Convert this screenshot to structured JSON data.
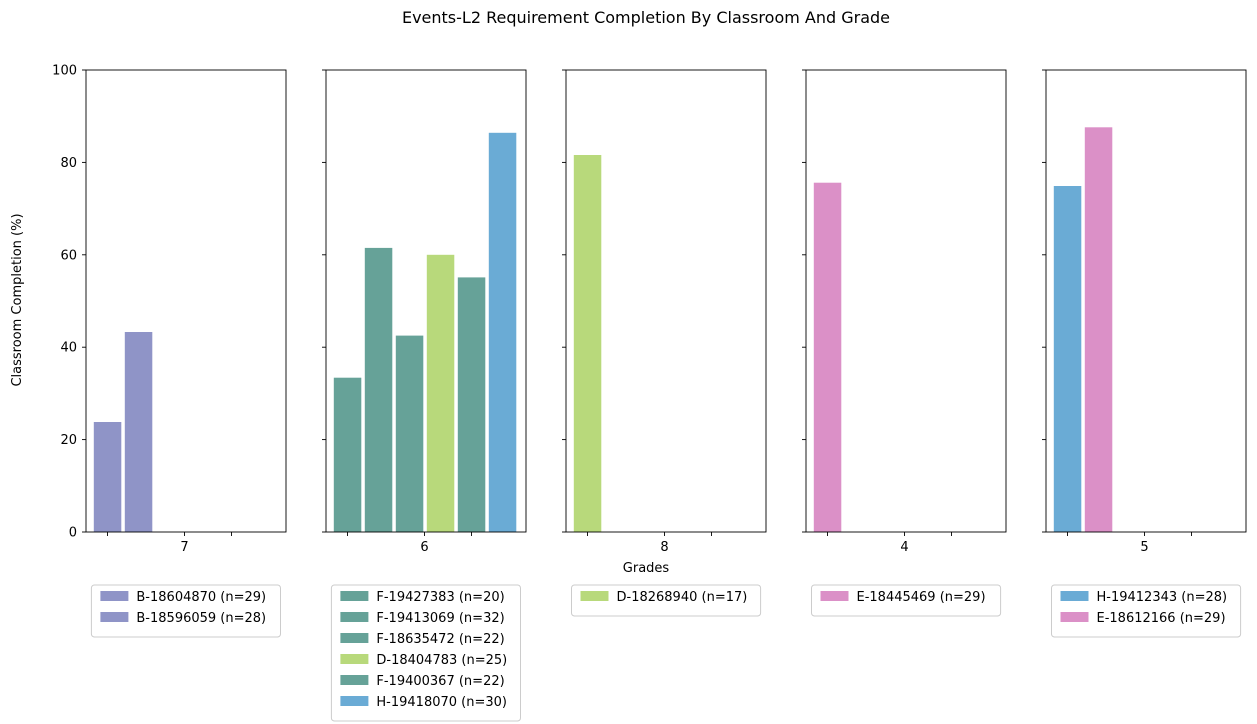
{
  "chart_data": {
    "type": "bar",
    "title": "Events-L2 Requirement Completion By Classroom And Grade",
    "xlabel": "Grades",
    "ylabel": "Classroom Completion (%)",
    "ylim": [
      0,
      100
    ],
    "yticks": [
      "0",
      "20",
      "40",
      "60",
      "80",
      "100"
    ],
    "grid": false,
    "legend_placement": "below each panel",
    "colors": {
      "B": "#8f94c7",
      "F": "#66a298",
      "D": "#b8d97b",
      "H": "#6aabd5",
      "E": "#db90c7"
    },
    "panels": [
      {
        "grade": "7",
        "series": [
          {
            "name": "B-18604870 (n=29)",
            "value": 23.8,
            "color": "#8f94c7"
          },
          {
            "name": "B-18596059 (n=28)",
            "value": 43.3,
            "color": "#8f94c7"
          }
        ]
      },
      {
        "grade": "6",
        "series": [
          {
            "name": "F-19427383 (n=20)",
            "value": 33.4,
            "color": "#66a298"
          },
          {
            "name": "F-19413069 (n=32)",
            "value": 61.5,
            "color": "#66a298"
          },
          {
            "name": "F-18635472 (n=22)",
            "value": 42.5,
            "color": "#66a298"
          },
          {
            "name": "D-18404783 (n=25)",
            "value": 60.0,
            "color": "#b8d97b"
          },
          {
            "name": "F-19400367 (n=22)",
            "value": 55.1,
            "color": "#66a298"
          },
          {
            "name": "H-19418070 (n=30)",
            "value": 86.4,
            "color": "#6aabd5"
          }
        ]
      },
      {
        "grade": "8",
        "series": [
          {
            "name": "D-18268940 (n=17)",
            "value": 81.6,
            "color": "#b8d97b"
          }
        ]
      },
      {
        "grade": "4",
        "series": [
          {
            "name": "E-18445469 (n=29)",
            "value": 75.6,
            "color": "#db90c7"
          }
        ]
      },
      {
        "grade": "5",
        "series": [
          {
            "name": "H-19412343 (n=28)",
            "value": 74.9,
            "color": "#6aabd5"
          },
          {
            "name": "E-18612166 (n=29)",
            "value": 87.6,
            "color": "#db90c7"
          }
        ]
      }
    ]
  }
}
